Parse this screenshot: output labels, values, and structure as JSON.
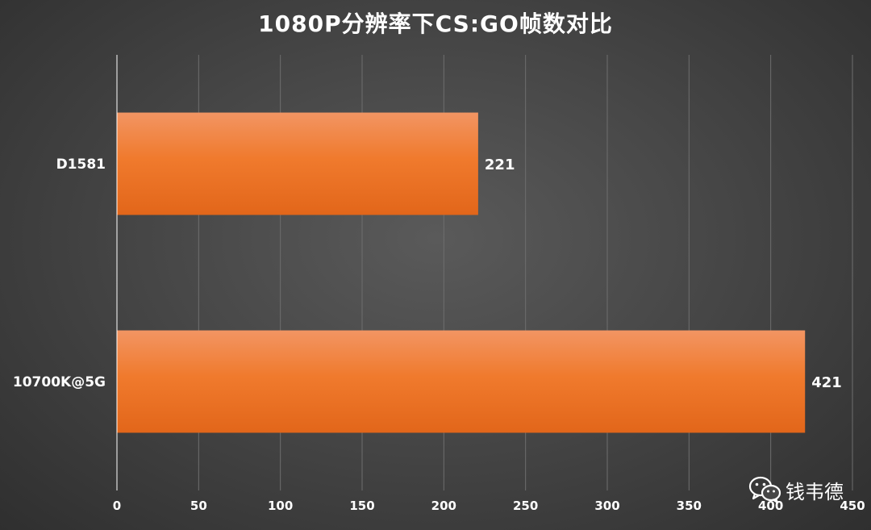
{
  "chart_data": {
    "type": "bar",
    "orientation": "horizontal",
    "title": "1080P分辨率下CS:GO帧数对比",
    "categories": [
      "D1581",
      "10700K@5G"
    ],
    "values": [
      221,
      421
    ],
    "data_labels": [
      "221",
      "421"
    ],
    "xlim": [
      0,
      450
    ],
    "x_ticks": [
      0,
      50,
      100,
      150,
      200,
      250,
      300,
      350,
      400,
      450
    ],
    "x_tick_labels": [
      "0",
      "50",
      "100",
      "150",
      "200",
      "250",
      "300",
      "350",
      "400",
      "450"
    ],
    "grid": true,
    "legend": "none",
    "colors": {
      "bar_top": "#f29563",
      "bar_mid": "#f07a2d",
      "bar_bottom": "#e2661a",
      "grid": "#6e6e6e",
      "axis": "#ffffff",
      "text": "#ffffff"
    }
  },
  "watermark": {
    "icon": "wechat-icon",
    "text": "钱韦德"
  }
}
